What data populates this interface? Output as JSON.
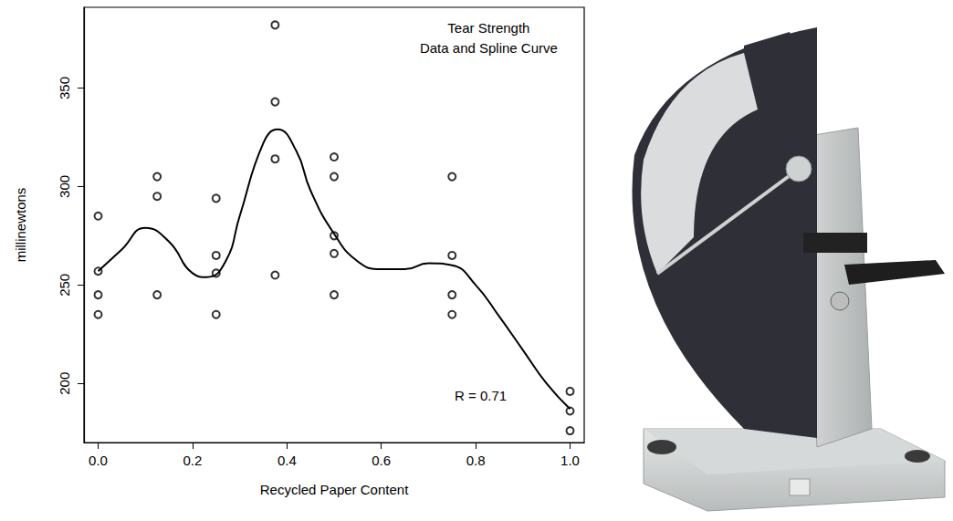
{
  "chart_data": {
    "type": "scatter",
    "title": "Tear Strength",
    "subtitle": "Data and Spline Curve",
    "x_label": "Recycled Paper Content",
    "y_label": "millinewtons",
    "annotations": [
      "R = 0.71"
    ],
    "xlim": [
      -0.03,
      1.03
    ],
    "xticks": [
      {
        "value": 0,
        "label": "0.0"
      },
      {
        "value": 0.2,
        "label": "0.2"
      },
      {
        "value": 0.4,
        "label": "0.4"
      },
      {
        "value": 0.6,
        "label": "0.6"
      },
      {
        "value": 0.8,
        "label": "0.8"
      },
      {
        "value": 1,
        "label": "1.0"
      }
    ],
    "ylim": [
      170,
      391
    ],
    "yticks": [
      200,
      250,
      300,
      350
    ],
    "grid": false,
    "series": [
      {
        "type": "scatter",
        "marker": "open circle",
        "color": "#000000",
        "x": [
          0,
          0,
          0,
          0,
          0.125,
          0.125,
          0.125,
          0.25,
          0.25,
          0.25,
          0.25,
          0.375,
          0.375,
          0.375,
          0.375,
          0.5,
          0.5,
          0.5,
          0.5,
          0.5,
          0.75,
          0.75,
          0.75,
          0.75,
          1,
          1,
          1
        ],
        "values": [
          285,
          257,
          245,
          235,
          305,
          295,
          245,
          294,
          265,
          256,
          235,
          382,
          343,
          314,
          255,
          315,
          305,
          275,
          266,
          245,
          305,
          265,
          245,
          235,
          196,
          186,
          176
        ]
      },
      {
        "type": "line",
        "line_style": "smooth",
        "color": "#000000",
        "x": [
          0,
          0.05,
          0.1,
          0.15,
          0.2,
          0.23,
          0.27,
          0.3,
          0.35,
          0.38,
          0.42,
          0.45,
          0.5,
          0.55,
          0.6,
          0.65,
          0.7,
          0.75,
          0.8,
          0.85,
          0.9,
          0.95,
          1
        ],
        "values": [
          257,
          268,
          279,
          272,
          256,
          254,
          262,
          285,
          322,
          329,
          318,
          298,
          276,
          262,
          258,
          258,
          261,
          260,
          250,
          234,
          217,
          200,
          187
        ]
      }
    ]
  }
}
